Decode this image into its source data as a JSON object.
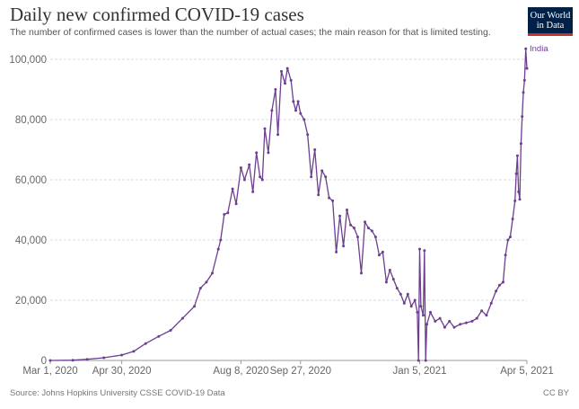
{
  "header": {
    "title": "Daily new confirmed COVID-19 cases",
    "subtitle": "The number of confirmed cases is lower than the number of actual cases; the main reason for that is limited testing."
  },
  "logo": {
    "line1": "Our World",
    "line2": "in Data",
    "background": "#002147",
    "accent": "#c0342d"
  },
  "footer": {
    "source": "Source: Johns Hopkins University CSSE COVID-19 Data",
    "license": "CC BY"
  },
  "chart_data": {
    "type": "line",
    "title": "Daily new confirmed COVID-19 cases",
    "xlabel": "",
    "ylabel": "",
    "x_start": "2020-03-01",
    "x_end": "2021-04-05",
    "ylim": [
      0,
      100000
    ],
    "yticks": [
      0,
      20000,
      40000,
      60000,
      80000,
      100000
    ],
    "ytick_labels": [
      "0",
      "20,000",
      "40,000",
      "60,000",
      "80,000",
      "100,000"
    ],
    "xticks": [
      "2020-03-01",
      "2020-04-30",
      "2020-08-08",
      "2020-09-27",
      "2021-01-05",
      "2021-04-05"
    ],
    "xtick_labels": [
      "Mar 1, 2020",
      "Apr 30, 2020",
      "Aug 8, 2020",
      "Sep 27, 2020",
      "Jan 5, 2021",
      "Apr 5, 2021"
    ],
    "grid": "horizontal dashed",
    "line_color": "#6d3e91",
    "series": [
      {
        "name": "India",
        "points": [
          [
            "2020-03-01",
            0
          ],
          [
            "2020-03-20",
            100
          ],
          [
            "2020-04-01",
            400
          ],
          [
            "2020-04-15",
            900
          ],
          [
            "2020-04-30",
            1800
          ],
          [
            "2020-05-10",
            3000
          ],
          [
            "2020-05-20",
            5600
          ],
          [
            "2020-05-31",
            8000
          ],
          [
            "2020-06-10",
            10000
          ],
          [
            "2020-06-20",
            14000
          ],
          [
            "2020-06-30",
            18000
          ],
          [
            "2020-07-05",
            24000
          ],
          [
            "2020-07-10",
            26000
          ],
          [
            "2020-07-15",
            29000
          ],
          [
            "2020-07-20",
            37000
          ],
          [
            "2020-07-22",
            40000
          ],
          [
            "2020-07-25",
            48500
          ],
          [
            "2020-07-28",
            49000
          ],
          [
            "2020-08-01",
            57000
          ],
          [
            "2020-08-04",
            52000
          ],
          [
            "2020-08-08",
            64000
          ],
          [
            "2020-08-11",
            60000
          ],
          [
            "2020-08-15",
            65000
          ],
          [
            "2020-08-18",
            56000
          ],
          [
            "2020-08-21",
            69000
          ],
          [
            "2020-08-24",
            61000
          ],
          [
            "2020-08-26",
            60000
          ],
          [
            "2020-08-28",
            77000
          ],
          [
            "2020-08-31",
            69000
          ],
          [
            "2020-09-03",
            83000
          ],
          [
            "2020-09-06",
            90000
          ],
          [
            "2020-09-08",
            75000
          ],
          [
            "2020-09-11",
            96000
          ],
          [
            "2020-09-14",
            92000
          ],
          [
            "2020-09-16",
            97000
          ],
          [
            "2020-09-19",
            93000
          ],
          [
            "2020-09-21",
            86000
          ],
          [
            "2020-09-23",
            83000
          ],
          [
            "2020-09-25",
            86000
          ],
          [
            "2020-09-27",
            82000
          ],
          [
            "2020-09-30",
            80000
          ],
          [
            "2020-10-03",
            75000
          ],
          [
            "2020-10-06",
            61000
          ],
          [
            "2020-10-09",
            70000
          ],
          [
            "2020-10-12",
            55000
          ],
          [
            "2020-10-15",
            63000
          ],
          [
            "2020-10-18",
            61000
          ],
          [
            "2020-10-21",
            54000
          ],
          [
            "2020-10-24",
            53000
          ],
          [
            "2020-10-27",
            36000
          ],
          [
            "2020-10-30",
            48000
          ],
          [
            "2020-11-02",
            38000
          ],
          [
            "2020-11-05",
            50000
          ],
          [
            "2020-11-08",
            45000
          ],
          [
            "2020-11-11",
            44000
          ],
          [
            "2020-11-14",
            41000
          ],
          [
            "2020-11-17",
            29000
          ],
          [
            "2020-11-20",
            46000
          ],
          [
            "2020-11-23",
            44000
          ],
          [
            "2020-11-26",
            43000
          ],
          [
            "2020-11-29",
            41000
          ],
          [
            "2020-12-02",
            35000
          ],
          [
            "2020-12-05",
            36000
          ],
          [
            "2020-12-08",
            26000
          ],
          [
            "2020-12-11",
            30000
          ],
          [
            "2020-12-14",
            27000
          ],
          [
            "2020-12-17",
            24000
          ],
          [
            "2020-12-20",
            22000
          ],
          [
            "2020-12-23",
            19000
          ],
          [
            "2020-12-26",
            22000
          ],
          [
            "2020-12-29",
            18000
          ],
          [
            "2021-01-01",
            20000
          ],
          [
            "2021-01-03",
            16000
          ],
          [
            "2021-01-04",
            0
          ],
          [
            "2021-01-05",
            37000
          ],
          [
            "2021-01-06",
            18000
          ],
          [
            "2021-01-08",
            15000
          ],
          [
            "2021-01-09",
            36500
          ],
          [
            "2021-01-10",
            0
          ],
          [
            "2021-01-11",
            12000
          ],
          [
            "2021-01-14",
            16000
          ],
          [
            "2021-01-18",
            13000
          ],
          [
            "2021-01-22",
            14000
          ],
          [
            "2021-01-26",
            11000
          ],
          [
            "2021-01-30",
            13000
          ],
          [
            "2021-02-03",
            11000
          ],
          [
            "2021-02-08",
            12000
          ],
          [
            "2021-02-13",
            12500
          ],
          [
            "2021-02-18",
            13000
          ],
          [
            "2021-02-22",
            14000
          ],
          [
            "2021-02-26",
            16500
          ],
          [
            "2021-03-02",
            15000
          ],
          [
            "2021-03-06",
            19000
          ],
          [
            "2021-03-10",
            23000
          ],
          [
            "2021-03-13",
            25000
          ],
          [
            "2021-03-16",
            26000
          ],
          [
            "2021-03-18",
            35000
          ],
          [
            "2021-03-20",
            40000
          ],
          [
            "2021-03-22",
            41000
          ],
          [
            "2021-03-24",
            47000
          ],
          [
            "2021-03-26",
            53000
          ],
          [
            "2021-03-27",
            62000
          ],
          [
            "2021-03-28",
            68000
          ],
          [
            "2021-03-29",
            56000
          ],
          [
            "2021-03-30",
            53500
          ],
          [
            "2021-03-31",
            72000
          ],
          [
            "2021-04-01",
            81000
          ],
          [
            "2021-04-02",
            89000
          ],
          [
            "2021-04-03",
            93000
          ],
          [
            "2021-04-04",
            103500
          ],
          [
            "2021-04-05",
            97000
          ]
        ]
      }
    ]
  }
}
